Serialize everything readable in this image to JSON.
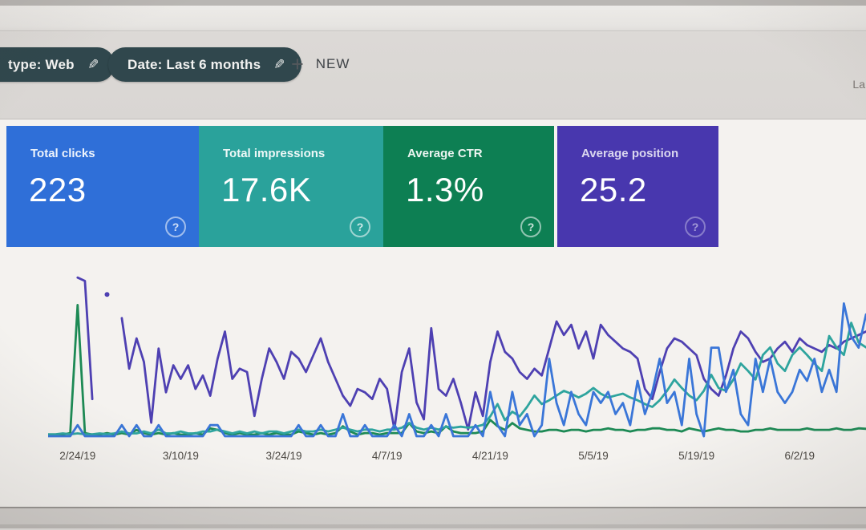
{
  "icons": {
    "edit": "✎",
    "plus": "+",
    "help": "?"
  },
  "header": {
    "chips": [
      {
        "label": "type: Web"
      },
      {
        "label": "Date: Last 6 months"
      }
    ],
    "new_button": {
      "label": "NEW"
    },
    "top_right_cutoff_text": "La"
  },
  "cards": [
    {
      "label": "Total clicks",
      "value": "223",
      "color": "#2f6fd8"
    },
    {
      "label": "Total impressions",
      "value": "17.6K",
      "color": "#2aa29b"
    },
    {
      "label": "Average CTR",
      "value": "1.3%",
      "color": "#0d7f53"
    },
    {
      "label": "Average position",
      "value": "25.2",
      "color": "#4837ae"
    }
  ],
  "chart_data": {
    "type": "line",
    "title": "",
    "xlabel": "",
    "ylabel": "",
    "grid": false,
    "legend": "none",
    "x_tick_labels": [
      "2/24/19",
      "3/10/19",
      "3/24/19",
      "4/7/19",
      "4/21/19",
      "5/5/19",
      "5/19/19",
      "6/2/19"
    ],
    "x_tick_day_index": [
      4,
      18,
      32,
      46,
      60,
      74,
      88,
      102
    ],
    "series": [
      {
        "name": "Clicks",
        "color": "#3a76d8",
        "values": [
          0,
          0,
          0,
          0,
          1,
          0,
          0,
          0,
          0,
          0,
          1,
          0,
          1,
          0,
          0,
          1,
          0,
          0,
          0,
          0,
          0,
          0,
          1,
          1,
          0,
          0,
          0,
          0,
          0,
          0,
          0,
          0,
          0,
          0,
          1,
          0,
          0,
          1,
          0,
          0,
          2,
          0,
          0,
          1,
          0,
          0,
          0,
          1,
          0,
          2,
          0,
          0,
          1,
          0,
          2,
          0,
          0,
          0,
          1,
          0,
          4,
          1,
          0,
          4,
          1,
          2,
          0,
          1,
          7,
          3,
          1,
          4,
          2,
          1,
          4,
          3,
          4,
          2,
          3,
          1,
          5,
          2,
          4,
          7,
          3,
          4,
          1,
          7,
          2,
          0,
          8,
          8,
          4,
          6,
          2,
          1,
          7,
          4,
          7,
          4,
          3,
          4,
          6,
          5,
          7,
          4,
          6,
          4,
          12,
          9,
          8,
          11
        ]
      },
      {
        "name": "Impressions",
        "color": "#2ea49e",
        "values": [
          10,
          10,
          15,
          10,
          15,
          10,
          10,
          15,
          10,
          15,
          25,
          15,
          15,
          25,
          15,
          35,
          15,
          15,
          25,
          15,
          15,
          25,
          25,
          35,
          25,
          15,
          25,
          15,
          25,
          15,
          25,
          25,
          15,
          25,
          35,
          25,
          25,
          35,
          25,
          35,
          45,
          35,
          25,
          35,
          35,
          25,
          35,
          35,
          45,
          70,
          45,
          35,
          45,
          35,
          50,
          45,
          50,
          45,
          50,
          60,
          105,
          170,
          85,
          130,
          105,
          155,
          215,
          170,
          190,
          215,
          240,
          225,
          205,
          225,
          255,
          225,
          205,
          215,
          225,
          205,
          190,
          170,
          155,
          190,
          240,
          300,
          255,
          215,
          190,
          240,
          325,
          255,
          240,
          300,
          385,
          345,
          300,
          430,
          470,
          385,
          345,
          430,
          470,
          430,
          385,
          345,
          530,
          470,
          430,
          600,
          495,
          470
        ]
      },
      {
        "name": "CTR (%)",
        "color": "#1d8a55",
        "values": [
          0.3,
          0.3,
          0.3,
          0.6,
          25.0,
          0.6,
          0.3,
          0.3,
          0.6,
          0.3,
          0.6,
          0.3,
          1.2,
          0.6,
          0.3,
          0.6,
          0.3,
          0.6,
          0.3,
          0.3,
          0.6,
          0.3,
          1.5,
          1.2,
          0.6,
          0.3,
          0.6,
          0.3,
          0.3,
          0.6,
          0.3,
          0.6,
          0.3,
          0.3,
          0.9,
          0.6,
          0.3,
          0.6,
          0.3,
          0.6,
          1.9,
          0.9,
          0.3,
          0.6,
          0.6,
          0.3,
          0.6,
          0.6,
          0.6,
          2.5,
          0.9,
          0.6,
          0.9,
          0.6,
          1.9,
          0.9,
          0.6,
          0.6,
          0.6,
          0.9,
          3.1,
          1.9,
          1.2,
          2.5,
          1.5,
          1.2,
          0.9,
          0.9,
          1.2,
          1.2,
          0.9,
          1.2,
          1.2,
          0.9,
          1.2,
          1.2,
          1.5,
          1.2,
          1.2,
          0.9,
          1.2,
          1.2,
          1.5,
          1.5,
          1.2,
          1.2,
          0.9,
          1.5,
          1.2,
          0.9,
          1.2,
          1.5,
          1.2,
          1.2,
          0.9,
          0.9,
          1.2,
          1.2,
          1.5,
          1.2,
          1.2,
          1.2,
          1.2,
          1.5,
          1.2,
          1.2,
          1.2,
          1.5,
          1.2,
          1.2,
          1.5,
          1.4
        ]
      },
      {
        "name": "Position",
        "color": "#4e40b2",
        "inverted_axis": true,
        "values": [
          null,
          null,
          null,
          null,
          5,
          6,
          41,
          null,
          10,
          null,
          17,
          32,
          23,
          30,
          48,
          26,
          39,
          31,
          35,
          31,
          38,
          34,
          40,
          29,
          21,
          35,
          32,
          33,
          46,
          35,
          26,
          30,
          35,
          27,
          29,
          33,
          28,
          23,
          30,
          35,
          40,
          43,
          38,
          39,
          41,
          35,
          38,
          50,
          33,
          26,
          42,
          47,
          20,
          38,
          40,
          35,
          42,
          50,
          39,
          46,
          30,
          21,
          27,
          29,
          33,
          35,
          32,
          34,
          26,
          18,
          22,
          19,
          26,
          21,
          29,
          19,
          22,
          24,
          26,
          27,
          29,
          38,
          41,
          33,
          26,
          23,
          24,
          26,
          28,
          35,
          38,
          40,
          34,
          26,
          21,
          23,
          27,
          30,
          29,
          26,
          24,
          27,
          23,
          25,
          26,
          27,
          25,
          26,
          24,
          23,
          22,
          21
        ]
      }
    ]
  }
}
